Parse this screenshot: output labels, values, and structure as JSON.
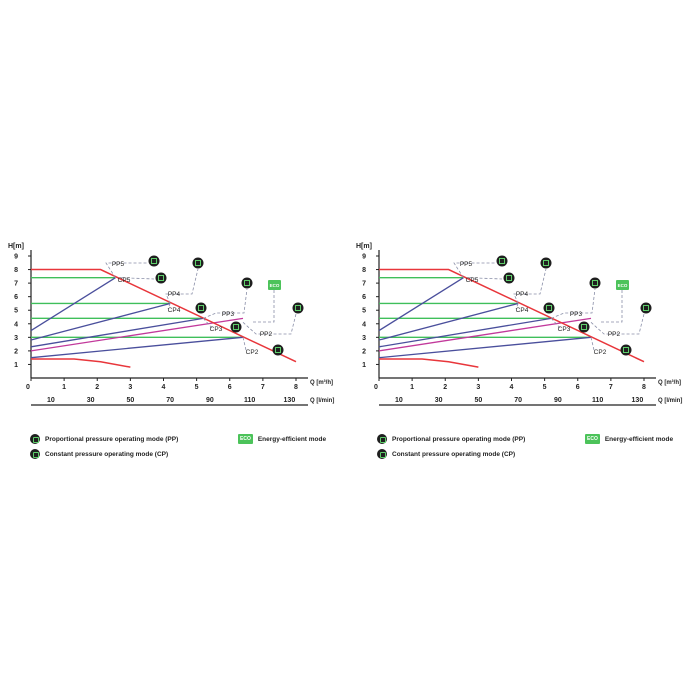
{
  "chart_data": [
    {
      "type": "line",
      "title": "",
      "ylabel": "H[m]",
      "xlabel": "Q [m³/h]",
      "x2label": "Q [l/min]",
      "ylim": [
        0,
        9
      ],
      "xlim": [
        0,
        8
      ],
      "y_ticks": [
        "1",
        "2",
        "3",
        "4",
        "5",
        "6",
        "7",
        "8",
        "9"
      ],
      "x_ticks": [
        "0",
        "1",
        "2",
        "3",
        "4",
        "5",
        "6",
        "7",
        "8"
      ],
      "x2_ticks": [
        "10",
        "30",
        "50",
        "70",
        "90",
        "110",
        "130"
      ],
      "x2_tick_positions_m3h": [
        0.6,
        1.8,
        3.0,
        4.2,
        5.4,
        6.6,
        7.8
      ],
      "max_curve": {
        "x": [
          0,
          2.1,
          8.0
        ],
        "y": [
          8.0,
          8.0,
          1.2
        ]
      },
      "min_curve": {
        "x": [
          0,
          1.3,
          2.1,
          3.0
        ],
        "y": [
          1.4,
          1.4,
          1.2,
          0.8
        ]
      },
      "cp_lines": [
        {
          "name": "CP5",
          "y": 7.4,
          "x_end": 2.55
        },
        {
          "name": "CP4",
          "y": 5.5,
          "x_end": 4.2
        },
        {
          "name": "CP3",
          "y": 4.4,
          "x_end": 5.2
        },
        {
          "name": "CP2",
          "y": 3.0,
          "x_end": 6.4
        }
      ],
      "pp_lines": [
        {
          "name": "PP5",
          "x": [
            0,
            2.55
          ],
          "y": [
            3.5,
            7.4
          ]
        },
        {
          "name": "PP4",
          "x": [
            0,
            4.2
          ],
          "y": [
            2.8,
            5.5
          ]
        },
        {
          "name": "PP3",
          "x": [
            0,
            5.2
          ],
          "y": [
            2.3,
            4.4
          ]
        },
        {
          "name": "PP2",
          "x": [
            0,
            6.4
          ],
          "y": [
            1.5,
            3.0
          ]
        },
        {
          "name": "",
          "x": [
            0,
            6.4
          ],
          "y": [
            2.0,
            4.4
          ],
          "style": "eco"
        }
      ],
      "labels": [
        {
          "text": "PP5",
          "kind": "pp"
        },
        {
          "text": "CP5",
          "kind": "cp"
        },
        {
          "text": "PP4",
          "kind": "pp"
        },
        {
          "text": "CP4",
          "kind": "cp"
        },
        {
          "text": "PP3",
          "kind": "pp"
        },
        {
          "text": "CP3",
          "kind": "cp"
        },
        {
          "text": "PP2",
          "kind": "pp"
        },
        {
          "text": "CP2",
          "kind": "cp"
        }
      ],
      "eco_label": "ECO"
    },
    {
      "type": "line",
      "title": "",
      "ylabel": "H[m]",
      "xlabel": "Q [m³/h]",
      "x2label": "Q [l/min]",
      "ylim": [
        0,
        9
      ],
      "xlim": [
        0,
        8
      ],
      "y_ticks": [
        "1",
        "2",
        "3",
        "4",
        "5",
        "6",
        "7",
        "8",
        "9"
      ],
      "x_ticks": [
        "0",
        "1",
        "2",
        "3",
        "4",
        "5",
        "6",
        "7",
        "8"
      ],
      "x2_ticks": [
        "10",
        "30",
        "50",
        "70",
        "90",
        "110",
        "130"
      ],
      "x2_tick_positions_m3h": [
        0.6,
        1.8,
        3.0,
        4.2,
        5.4,
        6.6,
        7.8
      ],
      "max_curve": {
        "x": [
          0,
          2.1,
          8.0
        ],
        "y": [
          8.0,
          8.0,
          1.2
        ]
      },
      "min_curve": {
        "x": [
          0,
          1.3,
          2.1,
          3.0
        ],
        "y": [
          1.4,
          1.4,
          1.2,
          0.8
        ]
      },
      "cp_lines": [
        {
          "name": "CP5",
          "y": 7.4,
          "x_end": 2.55
        },
        {
          "name": "CP4",
          "y": 5.5,
          "x_end": 4.2
        },
        {
          "name": "CP3",
          "y": 4.4,
          "x_end": 5.2
        },
        {
          "name": "CP2",
          "y": 3.0,
          "x_end": 6.4
        }
      ],
      "pp_lines": [
        {
          "name": "PP5",
          "x": [
            0,
            2.55
          ],
          "y": [
            3.5,
            7.4
          ]
        },
        {
          "name": "PP4",
          "x": [
            0,
            4.2
          ],
          "y": [
            2.8,
            5.5
          ]
        },
        {
          "name": "PP3",
          "x": [
            0,
            5.2
          ],
          "y": [
            2.3,
            4.4
          ]
        },
        {
          "name": "PP2",
          "x": [
            0,
            6.4
          ],
          "y": [
            1.5,
            3.0
          ]
        },
        {
          "name": "",
          "x": [
            0,
            6.4
          ],
          "y": [
            2.0,
            4.4
          ],
          "style": "eco"
        }
      ],
      "labels": [
        {
          "text": "PP5",
          "kind": "pp"
        },
        {
          "text": "CP5",
          "kind": "cp"
        },
        {
          "text": "PP4",
          "kind": "pp"
        },
        {
          "text": "CP4",
          "kind": "cp"
        },
        {
          "text": "PP3",
          "kind": "pp"
        },
        {
          "text": "CP3",
          "kind": "cp"
        },
        {
          "text": "PP2",
          "kind": "pp"
        },
        {
          "text": "CP2",
          "kind": "cp"
        }
      ],
      "eco_label": "ECO"
    }
  ],
  "legend": {
    "pp_label": "Proportional pressure operating mode (PP)",
    "cp_label": "Constant pressure operating mode (CP)",
    "eco_label": "Energy-efficient mode",
    "eco_badge": "ECO"
  },
  "colors": {
    "max_curve": "#e8363b",
    "cp_line": "#3fbf5a",
    "pp_line": "#4a4f9c",
    "eco_line": "#c2399b",
    "dashed": "#8a8fa8",
    "axis": "#222222",
    "icon_bg": "#1f1f1f",
    "icon_fg": "#5fcf6b",
    "eco_badge": "#4cc35a"
  }
}
